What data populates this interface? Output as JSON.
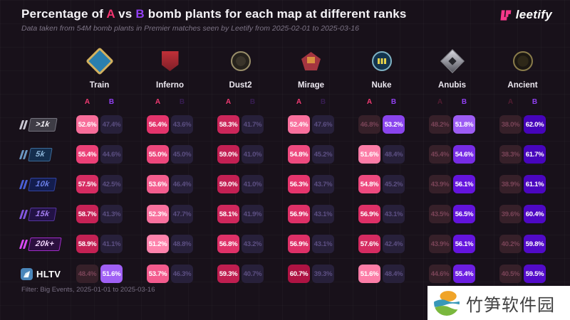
{
  "header": {
    "t1": "Percentage of ",
    "t2": "A",
    "t3": " vs ",
    "t4": "B",
    "t5": " bomb plants for each map at different ranks",
    "subtitle": "Data taken from 54M bomb plants in Premier matches seen by Leetify from 2025-02-01 to 2025-03-16",
    "logo_text": "leetify"
  },
  "footer": {
    "filter": "Filter: Big Events, 2025-01-01 to 2025-03-16"
  },
  "watermark": {
    "text": "竹笋软件园"
  },
  "colors": {
    "accent_a": "#f23570",
    "accent_b": "#9240f2",
    "background": "#18111a",
    "logo_pink": "#f5388a"
  },
  "icons": {
    "logo_mark": "leetify-logo-icon",
    "hltv_mark": "hltv-rocket-icon",
    "maps": [
      "train-map-icon",
      "inferno-map-icon",
      "dust2-map-icon",
      "mirage-map-icon",
      "nuke-map-icon",
      "anubis-map-icon",
      "ancient-map-icon"
    ]
  },
  "ranks": [
    {
      "label": ">1k",
      "bg": "#3e3c45",
      "border": "#75737e",
      "text": "#f2f0f5",
      "slash": "#c9c7d2"
    },
    {
      "label": "5k",
      "bg": "#142e4d",
      "border": "#3d6a97",
      "text": "#8fb8da",
      "slash": "#6b97c2"
    },
    {
      "label": "10k",
      "bg": "#131d4e",
      "border": "#3242a0",
      "text": "#6b7fe8",
      "slash": "#4a5fd6"
    },
    {
      "label": "15k",
      "bg": "#221245",
      "border": "#55359e",
      "text": "#a37ef0",
      "slash": "#8257e0"
    },
    {
      "label": "20k+",
      "bg": "#2c0f3f",
      "border": "#a12cc9",
      "text": "#f0d4fa",
      "slash": "#d84af5"
    },
    {
      "label": "HLTV",
      "type": "hltv",
      "icon_bg": "#4a86ba"
    }
  ],
  "chart_data": {
    "type": "table",
    "title": "Percentage of A vs B bomb plants for each map at different ranks",
    "site_a_label": "A",
    "site_b_label": "B",
    "columns": [
      "Train",
      "Inferno",
      "Dust2",
      "Mirage",
      "Nuke",
      "Anubis",
      "Ancient"
    ],
    "rows": [
      ">1k",
      "5k",
      "10k",
      "15k",
      "20k+",
      "HLTV"
    ],
    "series": [
      {
        "map": "Train",
        "A": [
          52.6,
          55.4,
          57.5,
          58.7,
          58.9,
          48.4
        ],
        "B": [
          47.4,
          44.6,
          42.5,
          41.3,
          41.1,
          51.6
        ]
      },
      {
        "map": "Inferno",
        "A": [
          56.4,
          55.0,
          53.6,
          52.3,
          51.2,
          53.7
        ],
        "B": [
          43.6,
          45.0,
          46.4,
          47.7,
          48.8,
          46.3
        ]
      },
      {
        "map": "Dust2",
        "A": [
          58.3,
          59.0,
          59.0,
          58.1,
          56.8,
          59.3
        ],
        "B": [
          41.7,
          41.0,
          41.0,
          41.9,
          43.2,
          40.7
        ]
      },
      {
        "map": "Mirage",
        "A": [
          52.4,
          54.8,
          56.3,
          56.9,
          56.9,
          60.7
        ],
        "B": [
          47.6,
          45.2,
          43.7,
          43.1,
          43.1,
          39.3
        ]
      },
      {
        "map": "Nuke",
        "A": [
          46.8,
          51.6,
          54.8,
          56.9,
          57.6,
          51.6
        ],
        "B": [
          53.2,
          48.4,
          45.2,
          43.1,
          42.4,
          48.4
        ]
      },
      {
        "map": "Anubis",
        "A": [
          48.2,
          45.4,
          43.9,
          43.5,
          43.9,
          44.6
        ],
        "B": [
          51.8,
          54.6,
          56.1,
          56.5,
          56.1,
          55.4
        ]
      },
      {
        "map": "Ancient",
        "A": [
          38.0,
          38.3,
          38.9,
          39.6,
          40.2,
          40.5
        ],
        "B": [
          62.0,
          61.7,
          61.1,
          60.4,
          59.8,
          59.5
        ]
      }
    ],
    "value_format": "percent_one_decimal",
    "legend_position": "per-column A/B headers",
    "grid": "subtle dark grid background"
  }
}
